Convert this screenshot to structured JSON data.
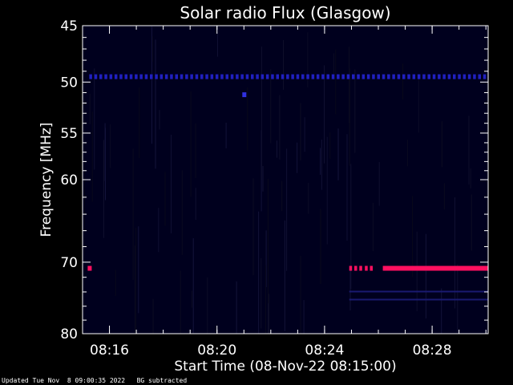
{
  "chart_data": {
    "type": "heatmap",
    "title": "Solar radio Flux (Glasgow)",
    "xlabel": "Start Time (08-Nov-22 08:15:00)",
    "ylabel": "Frequency [MHz]",
    "x_range": [
      "08:15:00",
      "08:30:05"
    ],
    "y_range": [
      45,
      80
    ],
    "y_scale": "log",
    "y_inverted": true,
    "x_ticks": [
      "08:16",
      "08:20",
      "08:24",
      "08:28"
    ],
    "y_ticks": [
      45,
      50,
      55,
      60,
      70,
      80
    ],
    "background_color": "#00001e",
    "features": [
      {
        "kind": "dotted-band",
        "frequency_mhz": 49.5,
        "from": "08:15:15",
        "to": "08:30:05",
        "color": "#2020c0"
      },
      {
        "kind": "spot",
        "frequency_mhz": 51.2,
        "time": "08:21:00",
        "color": "#3030e0"
      },
      {
        "kind": "spot",
        "frequency_mhz": 70.8,
        "time": "08:15:15",
        "color": "#ff1060"
      },
      {
        "kind": "dotted-band",
        "frequency_mhz": 70.8,
        "from": "08:24:55",
        "to": "08:25:25",
        "color": "#ff1060"
      },
      {
        "kind": "dotted-band",
        "frequency_mhz": 70.8,
        "from": "08:25:30",
        "to": "08:25:50",
        "color": "#ff1060"
      },
      {
        "kind": "solid-band",
        "frequency_mhz": 70.8,
        "from": "08:26:10",
        "to": "08:30:05",
        "color": "#ff1060"
      },
      {
        "kind": "faint-band",
        "frequency_mhz": 74.5,
        "from": "08:24:55",
        "to": "08:30:05",
        "color": "#1a1a70"
      }
    ]
  },
  "footer": {
    "updated": "Updated Tue Nov  8 09:00:35 2022",
    "note": "BG subtracted"
  }
}
